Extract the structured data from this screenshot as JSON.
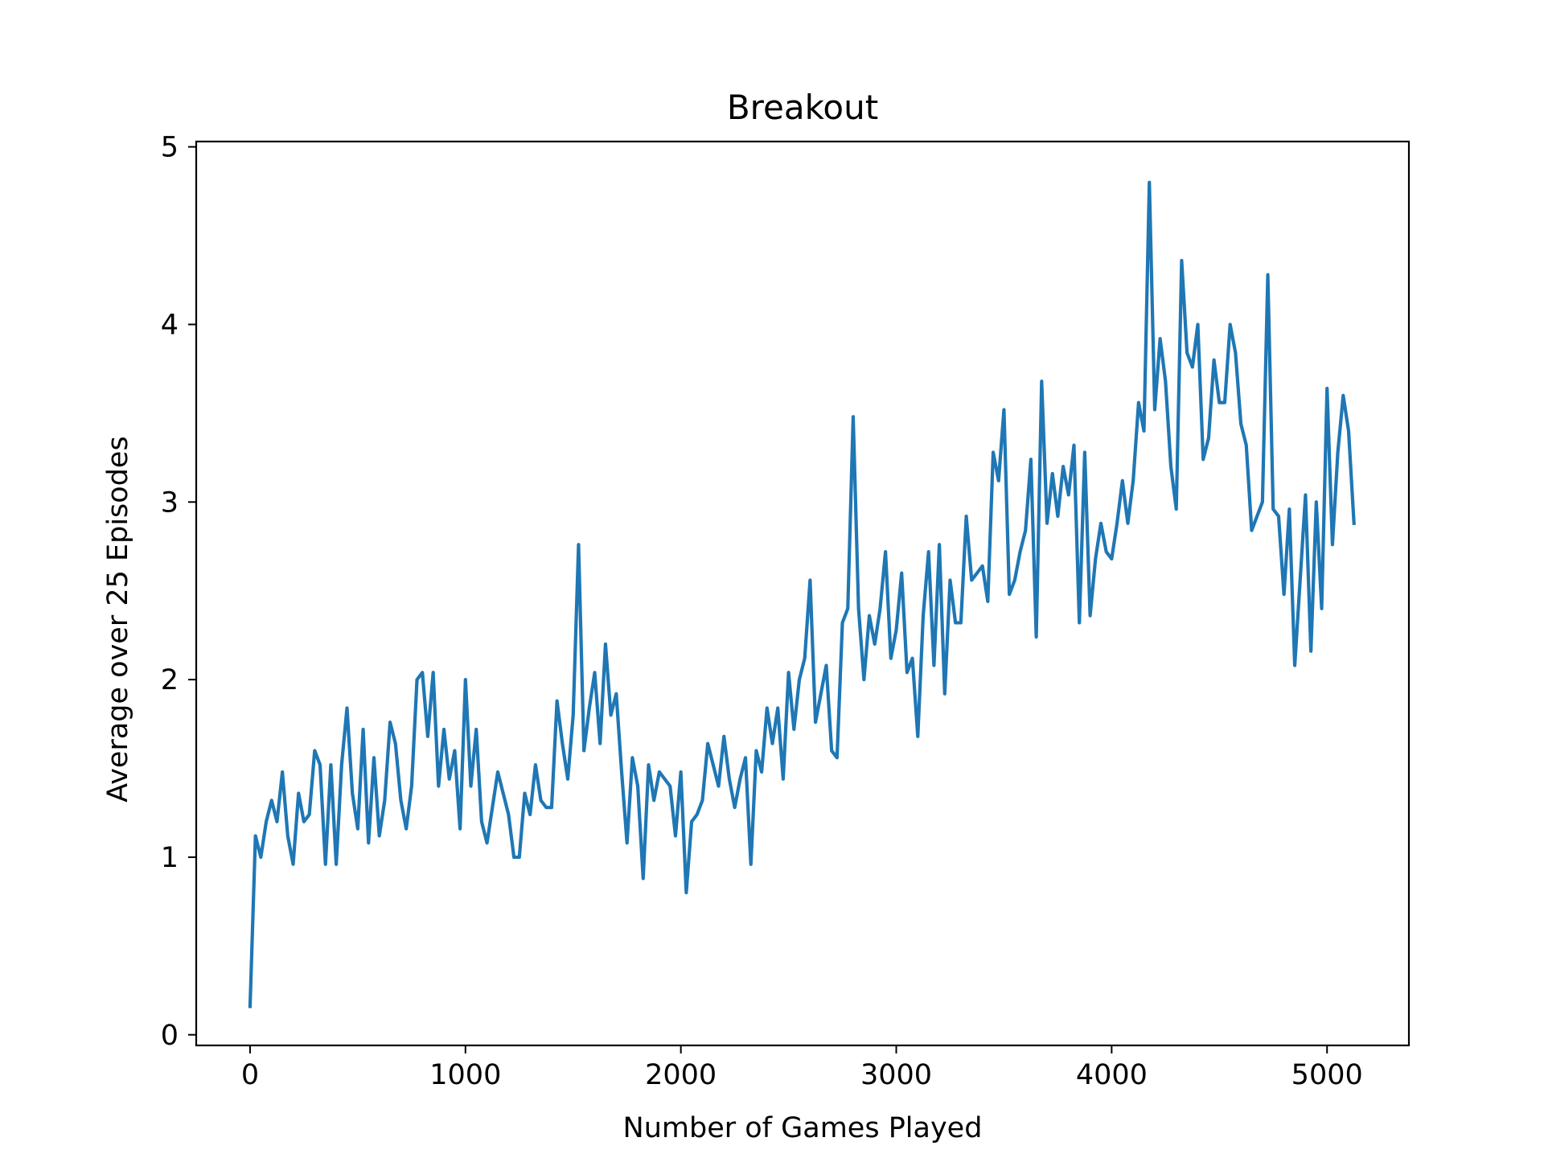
{
  "chart_data": {
    "type": "line",
    "title": "Breakout",
    "xlabel": "Number of Games Played",
    "ylabel": "Average over 25 Episodes",
    "xlim": [
      -250,
      5380
    ],
    "ylim": [
      -0.06,
      5.03
    ],
    "xticks": [
      0,
      1000,
      2000,
      3000,
      4000,
      5000
    ],
    "yticks": [
      0,
      1,
      2,
      3,
      4,
      5
    ],
    "xtick_labels": [
      "0",
      "1000",
      "2000",
      "3000",
      "4000",
      "5000"
    ],
    "ytick_labels": [
      "0",
      "1",
      "2",
      "3",
      "4",
      "5"
    ],
    "grid": false,
    "legend": "none",
    "series": [
      {
        "color": "#1f77b4",
        "x": [
          0,
          25,
          50,
          75,
          100,
          125,
          150,
          175,
          200,
          225,
          250,
          275,
          300,
          325,
          350,
          375,
          400,
          425,
          450,
          475,
          500,
          525,
          550,
          575,
          600,
          625,
          650,
          675,
          700,
          725,
          750,
          775,
          800,
          825,
          850,
          875,
          900,
          925,
          950,
          975,
          1000,
          1025,
          1050,
          1075,
          1100,
          1125,
          1150,
          1175,
          1200,
          1225,
          1250,
          1275,
          1300,
          1325,
          1350,
          1375,
          1400,
          1425,
          1450,
          1475,
          1500,
          1525,
          1550,
          1575,
          1600,
          1625,
          1650,
          1675,
          1700,
          1725,
          1750,
          1775,
          1800,
          1825,
          1850,
          1875,
          1900,
          1925,
          1950,
          1975,
          2000,
          2025,
          2050,
          2075,
          2100,
          2125,
          2150,
          2175,
          2200,
          2225,
          2250,
          2275,
          2300,
          2325,
          2350,
          2375,
          2400,
          2425,
          2450,
          2475,
          2500,
          2525,
          2550,
          2575,
          2600,
          2625,
          2650,
          2675,
          2700,
          2725,
          2750,
          2775,
          2800,
          2825,
          2850,
          2875,
          2900,
          2925,
          2950,
          2975,
          3000,
          3025,
          3050,
          3075,
          3100,
          3125,
          3150,
          3175,
          3200,
          3225,
          3250,
          3275,
          3300,
          3325,
          3350,
          3375,
          3400,
          3425,
          3450,
          3475,
          3500,
          3525,
          3550,
          3575,
          3600,
          3625,
          3650,
          3675,
          3700,
          3725,
          3750,
          3775,
          3800,
          3825,
          3850,
          3875,
          3900,
          3925,
          3950,
          3975,
          4000,
          4025,
          4050,
          4075,
          4100,
          4125,
          4150,
          4175,
          4200,
          4225,
          4250,
          4275,
          4300,
          4325,
          4350,
          4375,
          4400,
          4425,
          4450,
          4475,
          4500,
          4525,
          4550,
          4575,
          4600,
          4625,
          4650,
          4675,
          4700,
          4725,
          4750,
          4775,
          4800,
          4825,
          4850,
          4875,
          4900,
          4925,
          4950,
          4975,
          5000,
          5025,
          5050,
          5075,
          5100,
          5125
        ],
        "y": [
          0.16,
          1.12,
          1.0,
          1.2,
          1.32,
          1.2,
          1.48,
          1.12,
          0.96,
          1.36,
          1.2,
          1.24,
          1.6,
          1.52,
          0.96,
          1.52,
          0.96,
          1.52,
          1.84,
          1.36,
          1.16,
          1.72,
          1.08,
          1.56,
          1.12,
          1.32,
          1.76,
          1.64,
          1.32,
          1.16,
          1.4,
          2.0,
          2.04,
          1.68,
          2.04,
          1.4,
          1.72,
          1.44,
          1.6,
          1.16,
          2.0,
          1.4,
          1.72,
          1.2,
          1.08,
          1.28,
          1.48,
          1.36,
          1.24,
          1.0,
          1.0,
          1.36,
          1.24,
          1.52,
          1.32,
          1.28,
          1.28,
          1.88,
          1.64,
          1.44,
          1.8,
          2.76,
          1.6,
          1.84,
          2.04,
          1.64,
          2.2,
          1.8,
          1.92,
          1.48,
          1.08,
          1.56,
          1.4,
          0.88,
          1.52,
          1.32,
          1.48,
          1.44,
          1.4,
          1.12,
          1.48,
          0.8,
          1.2,
          1.24,
          1.32,
          1.64,
          1.52,
          1.4,
          1.68,
          1.44,
          1.28,
          1.44,
          1.56,
          0.96,
          1.6,
          1.48,
          1.84,
          1.64,
          1.84,
          1.44,
          2.04,
          1.72,
          2.0,
          2.12,
          2.56,
          1.76,
          1.92,
          2.08,
          1.6,
          1.56,
          2.32,
          2.4,
          3.48,
          2.4,
          2.0,
          2.36,
          2.2,
          2.4,
          2.72,
          2.12,
          2.28,
          2.6,
          2.04,
          2.12,
          1.68,
          2.36,
          2.72,
          2.08,
          2.76,
          1.92,
          2.56,
          2.32,
          2.32,
          2.92,
          2.56,
          2.6,
          2.64,
          2.44,
          3.28,
          3.12,
          3.52,
          2.48,
          2.56,
          2.72,
          2.84,
          3.24,
          2.24,
          3.68,
          2.88,
          3.16,
          2.92,
          3.2,
          3.04,
          3.32,
          2.32,
          3.28,
          2.36,
          2.68,
          2.88,
          2.72,
          2.68,
          2.88,
          3.12,
          2.88,
          3.12,
          3.56,
          3.4,
          4.8,
          3.52,
          3.92,
          3.68,
          3.2,
          2.96,
          4.36,
          3.84,
          3.76,
          4.0,
          3.24,
          3.36,
          3.8,
          3.56,
          3.56,
          4.0,
          3.84,
          3.44,
          3.32,
          2.84,
          2.92,
          3.0,
          4.28,
          2.96,
          2.92,
          2.48,
          2.96,
          2.08,
          2.56,
          3.04,
          2.16,
          3.0,
          2.4,
          3.64,
          2.76,
          3.28,
          3.6,
          3.4,
          2.88
        ]
      }
    ]
  }
}
